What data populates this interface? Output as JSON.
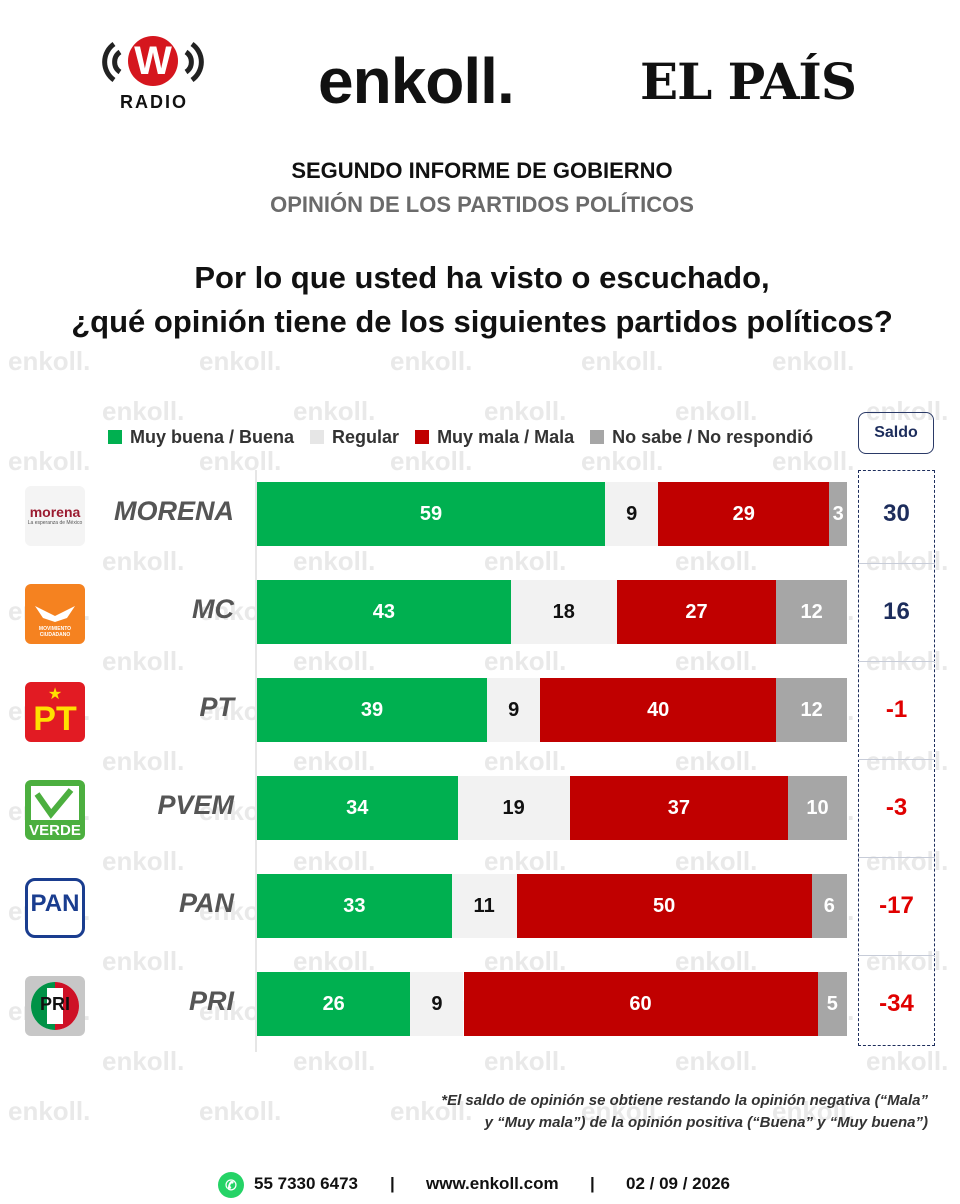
{
  "header": {
    "wradio": {
      "letter": "W",
      "text": "RADIO"
    },
    "enkoll": "enkoll.",
    "elpais": "EL PAÍS"
  },
  "titles": {
    "line1": "SEGUNDO INFORME DE GOBIERNO",
    "line2": "OPINIÓN DE LOS PARTIDOS POLÍTICOS"
  },
  "question": {
    "line1": "Por lo que usted ha visto o escuchado,",
    "line2": "¿qué opinión tiene de los siguientes partidos políticos?"
  },
  "watermark_text": "enkoll.",
  "saldo_header": "Saldo",
  "note": {
    "line1": "*El saldo de opinión se obtiene restando la opinión negativa (“Mala”",
    "line2": "y “Muy mala”) de la opinión positiva (“Buena” y “Muy buena”)"
  },
  "footer": {
    "phone": "55 7330 6473",
    "sep": "|",
    "website": "www.enkoll.com",
    "date": "02 / 09 / 2026"
  },
  "logo_texts": {
    "morena": "morena",
    "morena_sub": "La esperanza de México",
    "mc": "MOVIMIENTO CIUDADANO",
    "pt": "PT",
    "pvem": "VERDE",
    "pan": "PAN",
    "pri": "PRI"
  },
  "chart_data": {
    "type": "bar",
    "orientation": "horizontal",
    "stacked": true,
    "categories": [
      "MORENA",
      "MC",
      "PT",
      "PVEM",
      "PAN",
      "PRI"
    ],
    "series": [
      {
        "name": "Muy buena / Buena",
        "color": "#00b050",
        "values": [
          59,
          43,
          39,
          34,
          33,
          26
        ]
      },
      {
        "name": "Regular",
        "color": "#f2f2f2",
        "values": [
          9,
          18,
          9,
          19,
          11,
          9
        ]
      },
      {
        "name": "Muy mala / Mala",
        "color": "#c00000",
        "values": [
          29,
          27,
          40,
          37,
          50,
          60
        ]
      },
      {
        "name": "No sabe / No respondió",
        "color": "#a6a6a6",
        "values": [
          3,
          12,
          12,
          10,
          6,
          5
        ]
      }
    ],
    "saldo": [
      30,
      16,
      -1,
      -3,
      -17,
      -34
    ],
    "saldo_colors": {
      "positive": "#1d2d5c",
      "negative": "#e00000"
    },
    "xlim": [
      0,
      100
    ]
  }
}
